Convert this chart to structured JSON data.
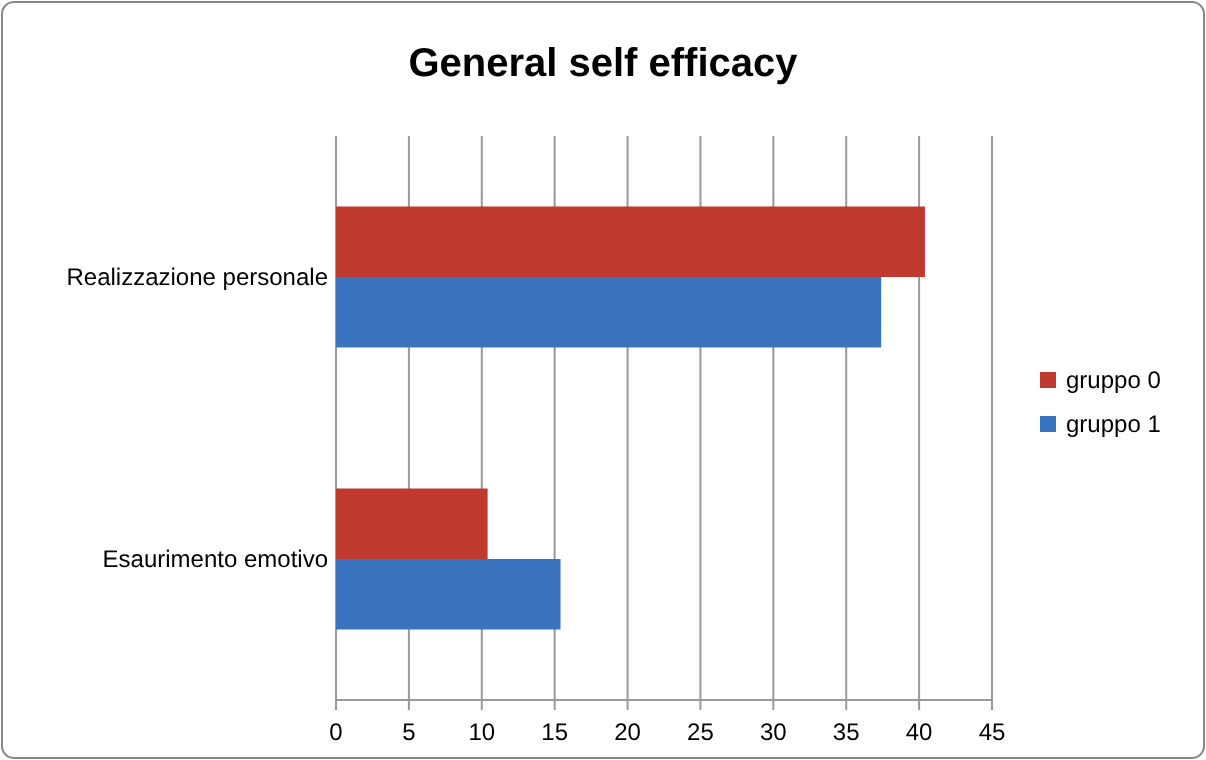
{
  "chart_data": {
    "type": "bar",
    "title": "General self efficacy",
    "orientation": "horizontal",
    "categories": [
      "Realizzazione personale",
      "Esaurimento emotivo"
    ],
    "series": [
      {
        "name": "gruppo 0",
        "color": "#c0392f",
        "values": [
          40.4,
          10.4
        ]
      },
      {
        "name": "gruppo 1",
        "color": "#3a74bf",
        "values": [
          37.4,
          15.4
        ]
      }
    ],
    "xlim": [
      0,
      45
    ],
    "xticks": [
      0,
      5,
      10,
      15,
      20,
      25,
      30,
      35,
      40,
      45
    ],
    "grid": "x",
    "legend": "right"
  }
}
